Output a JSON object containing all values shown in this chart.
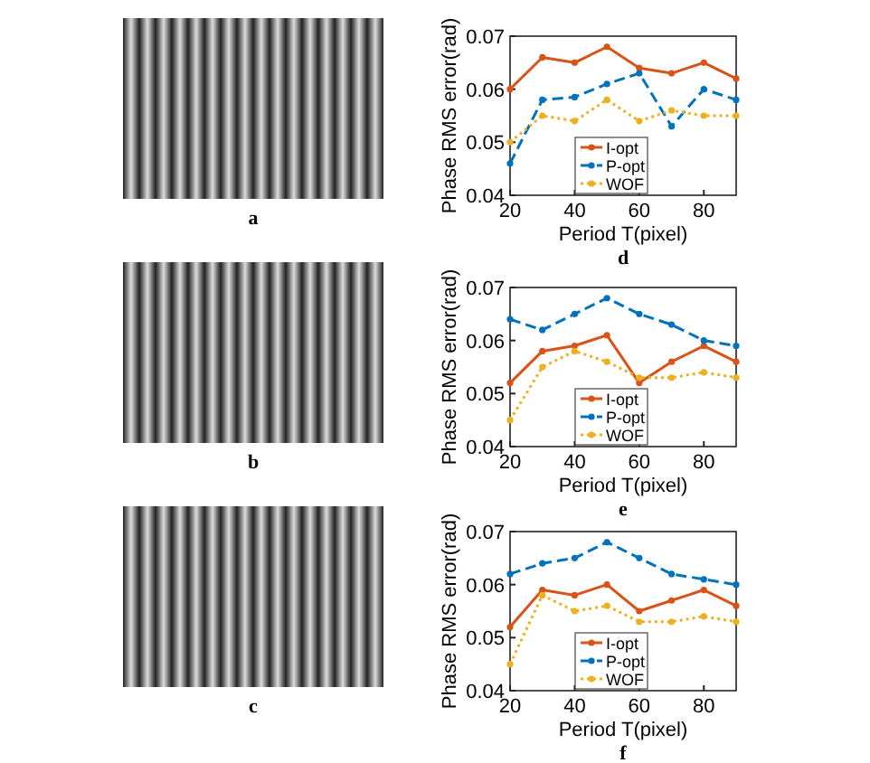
{
  "chart_data": [
    {
      "type": "other",
      "title": "a"
    },
    {
      "type": "line",
      "title": "d",
      "xlabel": "Period T(pixel)",
      "ylabel": "Phase RMS error(rad)",
      "x": [
        20,
        30,
        40,
        50,
        60,
        70,
        80,
        90
      ],
      "xlim": [
        20,
        90
      ],
      "xticks": [
        20,
        40,
        60,
        80
      ],
      "ylim": [
        0.04,
        0.07
      ],
      "yticks": [
        0.04,
        0.05,
        0.06,
        0.07
      ],
      "legend": "bottom",
      "marker": "circle",
      "series": [
        {
          "name": "I-opt",
          "color": "#d95319",
          "line_style": "solid",
          "values": [
            0.06,
            0.066,
            0.065,
            0.068,
            0.064,
            0.063,
            0.065,
            0.062
          ]
        },
        {
          "name": "P-opt",
          "color": "#0072bd",
          "line_style": "dashed",
          "values": [
            0.046,
            0.058,
            0.0585,
            0.061,
            0.063,
            0.053,
            0.06,
            0.058
          ]
        },
        {
          "name": "WOF",
          "color": "#edb120",
          "line_style": "dotted",
          "values": [
            0.05,
            0.055,
            0.054,
            0.058,
            0.054,
            0.056,
            0.055,
            0.055
          ]
        }
      ]
    },
    {
      "type": "other",
      "title": "b"
    },
    {
      "type": "line",
      "title": "e",
      "xlabel": "Period T(pixel)",
      "ylabel": "Phase RMS error(rad)",
      "x": [
        20,
        30,
        40,
        50,
        60,
        70,
        80,
        90
      ],
      "xlim": [
        20,
        90
      ],
      "xticks": [
        20,
        40,
        60,
        80
      ],
      "ylim": [
        0.04,
        0.07
      ],
      "yticks": [
        0.04,
        0.05,
        0.06,
        0.07
      ],
      "legend": "bottom",
      "marker": "circle",
      "series": [
        {
          "name": "I-opt",
          "color": "#d95319",
          "line_style": "solid",
          "values": [
            0.052,
            0.058,
            0.059,
            0.061,
            0.052,
            0.056,
            0.059,
            0.056
          ]
        },
        {
          "name": "P-opt",
          "color": "#0072bd",
          "line_style": "dashed",
          "values": [
            0.064,
            0.062,
            0.065,
            0.068,
            0.065,
            0.063,
            0.06,
            0.059
          ]
        },
        {
          "name": "WOF",
          "color": "#edb120",
          "line_style": "dotted",
          "values": [
            0.045,
            0.055,
            0.058,
            0.056,
            0.053,
            0.053,
            0.054,
            0.053
          ]
        }
      ]
    },
    {
      "type": "other",
      "title": "c"
    },
    {
      "type": "line",
      "title": "f",
      "xlabel": "Period T(pixel)",
      "ylabel": "Phase RMS error(rad)",
      "x": [
        20,
        30,
        40,
        50,
        60,
        70,
        80,
        90
      ],
      "xlim": [
        20,
        90
      ],
      "xticks": [
        20,
        40,
        60,
        80
      ],
      "ylim": [
        0.04,
        0.07
      ],
      "yticks": [
        0.04,
        0.05,
        0.06,
        0.07
      ],
      "legend": "bottom",
      "marker": "circle",
      "series": [
        {
          "name": "I-opt",
          "color": "#d95319",
          "line_style": "solid",
          "values": [
            0.052,
            0.059,
            0.058,
            0.06,
            0.055,
            0.057,
            0.059,
            0.056
          ]
        },
        {
          "name": "P-opt",
          "color": "#0072bd",
          "line_style": "dashed",
          "values": [
            0.062,
            0.064,
            0.065,
            0.068,
            0.065,
            0.062,
            0.061,
            0.06
          ]
        },
        {
          "name": "WOF",
          "color": "#edb120",
          "line_style": "dotted",
          "values": [
            0.045,
            0.058,
            0.055,
            0.056,
            0.053,
            0.053,
            0.054,
            0.053
          ]
        }
      ]
    }
  ]
}
